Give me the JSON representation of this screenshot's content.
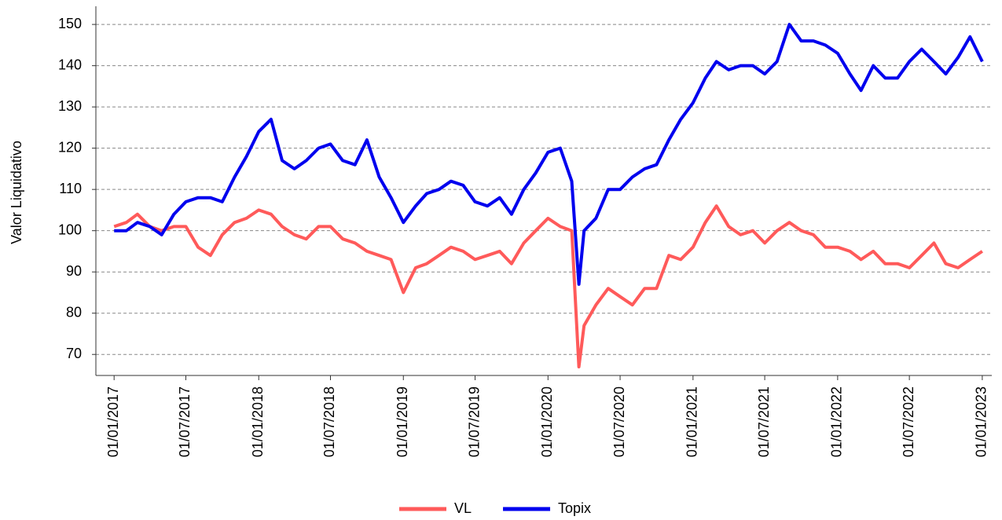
{
  "chart_data": {
    "type": "line",
    "y_label": "Valor Liquidativo",
    "x": [
      "2017-01-01",
      "2017-02-01",
      "2017-03-01",
      "2017-04-01",
      "2017-05-01",
      "2017-06-01",
      "2017-07-01",
      "2017-08-01",
      "2017-09-01",
      "2017-10-01",
      "2017-11-01",
      "2017-12-01",
      "2018-01-01",
      "2018-02-01",
      "2018-03-01",
      "2018-04-01",
      "2018-05-01",
      "2018-06-01",
      "2018-07-01",
      "2018-08-01",
      "2018-09-01",
      "2018-10-01",
      "2018-11-01",
      "2018-12-01",
      "2019-01-01",
      "2019-02-01",
      "2019-03-01",
      "2019-04-01",
      "2019-05-01",
      "2019-06-01",
      "2019-07-01",
      "2019-08-01",
      "2019-09-01",
      "2019-10-01",
      "2019-11-01",
      "2019-12-01",
      "2020-01-01",
      "2020-02-01",
      "2020-03-01",
      "2020-03-19",
      "2020-04-01",
      "2020-05-01",
      "2020-06-01",
      "2020-07-01",
      "2020-08-01",
      "2020-09-01",
      "2020-10-01",
      "2020-11-01",
      "2020-12-01",
      "2021-01-01",
      "2021-02-01",
      "2021-03-01",
      "2021-04-01",
      "2021-05-01",
      "2021-06-01",
      "2021-07-01",
      "2021-08-01",
      "2021-09-01",
      "2021-10-01",
      "2021-11-01",
      "2021-12-01",
      "2022-01-01",
      "2022-02-01",
      "2022-03-01",
      "2022-04-01",
      "2022-05-01",
      "2022-06-01",
      "2022-07-01",
      "2022-08-01",
      "2022-09-01",
      "2022-10-01",
      "2022-11-01",
      "2022-12-01",
      "2023-01-01"
    ],
    "series": [
      {
        "name": "VL",
        "color": "#ff5a5a",
        "values": [
          101,
          102,
          104,
          101,
          100,
          101,
          101,
          96,
          94,
          99,
          102,
          103,
          105,
          104,
          101,
          99,
          98,
          101,
          101,
          98,
          97,
          95,
          94,
          93,
          85,
          91,
          92,
          94,
          96,
          95,
          93,
          94,
          95,
          92,
          97,
          100,
          103,
          101,
          100,
          67,
          77,
          82,
          86,
          84,
          82,
          86,
          86,
          94,
          93,
          96,
          102,
          106,
          101,
          99,
          100,
          97,
          100,
          102,
          100,
          99,
          96,
          96,
          95,
          93,
          95,
          92,
          92,
          91,
          94,
          97,
          92,
          91,
          93,
          95
        ]
      },
      {
        "name": "Topix",
        "color": "#0000ee",
        "values": [
          100,
          100,
          102,
          101,
          99,
          104,
          107,
          108,
          108,
          107,
          113,
          118,
          124,
          127,
          117,
          115,
          117,
          120,
          121,
          117,
          116,
          122,
          113,
          108,
          102,
          106,
          109,
          110,
          112,
          111,
          107,
          106,
          108,
          104,
          110,
          114,
          119,
          120,
          112,
          87,
          100,
          103,
          110,
          110,
          113,
          115,
          116,
          122,
          127,
          131,
          137,
          141,
          139,
          140,
          140,
          138,
          141,
          150,
          146,
          146,
          145,
          143,
          138,
          134,
          140,
          137,
          137,
          141,
          144,
          141,
          138,
          142,
          147,
          141
        ]
      }
    ],
    "xlim": [
      "2016-11-16",
      "2023-01-25"
    ],
    "xticks": [
      {
        "value": "2017-01-01",
        "label": "01/01/2017"
      },
      {
        "value": "2017-07-01",
        "label": "01/07/2017"
      },
      {
        "value": "2018-01-01",
        "label": "01/01/2018"
      },
      {
        "value": "2018-07-01",
        "label": "01/07/2018"
      },
      {
        "value": "2019-01-01",
        "label": "01/01/2019"
      },
      {
        "value": "2019-07-01",
        "label": "01/07/2019"
      },
      {
        "value": "2020-01-01",
        "label": "01/01/2020"
      },
      {
        "value": "2020-07-01",
        "label": "01/07/2020"
      },
      {
        "value": "2021-01-01",
        "label": "01/01/2021"
      },
      {
        "value": "2021-07-01",
        "label": "01/07/2021"
      },
      {
        "value": "2022-01-01",
        "label": "01/01/2022"
      },
      {
        "value": "2022-07-01",
        "label": "01/07/2022"
      },
      {
        "value": "2023-01-01",
        "label": "01/01/2023"
      }
    ],
    "ylim": [
      64.9,
      154.4
    ],
    "yticks": [
      70,
      80,
      90,
      100,
      110,
      120,
      130,
      140,
      150
    ],
    "grid": true,
    "legend": "bottom"
  }
}
